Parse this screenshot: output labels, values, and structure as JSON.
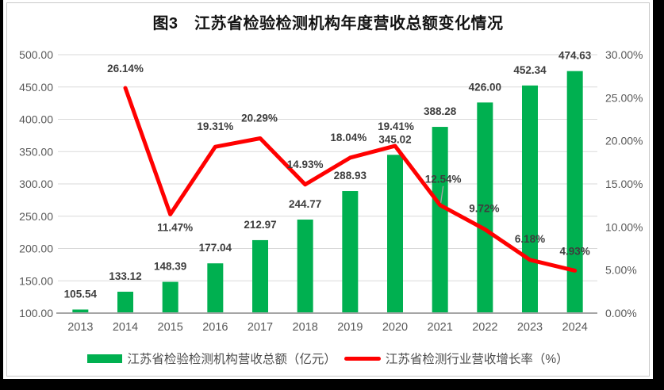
{
  "title": "图3　江苏省检验检测机构年度营收总额变化情况",
  "chart_data": {
    "type": "bar+line combo",
    "categories": [
      "2013",
      "2014",
      "2015",
      "2016",
      "2017",
      "2018",
      "2019",
      "2020",
      "2021",
      "2022",
      "2023",
      "2024"
    ],
    "series": [
      {
        "name": "江苏省检验检测机构营收总额（亿元）",
        "type": "bar",
        "axis": "left",
        "color": "#00B050",
        "values": [
          105.54,
          133.12,
          148.39,
          177.04,
          212.97,
          244.77,
          288.93,
          345.02,
          388.28,
          426.0,
          452.34,
          474.63
        ],
        "labels": [
          "105.54",
          "133.12",
          "148.39",
          "177.04",
          "212.97",
          "244.77",
          "288.93",
          "345.02",
          "388.28",
          "426.00",
          "452.34",
          "474.63"
        ]
      },
      {
        "name": "江苏省检测行业营收增长率（%）",
        "type": "line",
        "axis": "right",
        "color": "#FF0000",
        "values": [
          null,
          26.14,
          11.47,
          19.31,
          20.29,
          14.93,
          18.04,
          19.41,
          12.54,
          9.72,
          6.18,
          4.93
        ],
        "labels": [
          null,
          "26.14%",
          "11.47%",
          "19.31%",
          "20.29%",
          "14.93%",
          "18.04%",
          "19.41%",
          "12.54%",
          "9.72%",
          "6.18%",
          "4.93%"
        ],
        "label_offsets": [
          null,
          [
            0,
            -25
          ],
          [
            6,
            16
          ],
          [
            0,
            -26
          ],
          [
            -1,
            -26
          ],
          [
            0,
            -26
          ],
          [
            -2,
            -26
          ],
          [
            1,
            -25
          ],
          [
            4,
            -33
          ],
          [
            -1,
            -27
          ],
          [
            0,
            -27
          ],
          [
            0,
            -25
          ]
        ],
        "leader_index": 8
      }
    ],
    "left_axis": {
      "min": 100,
      "max": 500,
      "step": 50,
      "ticks": [
        "100.00",
        "150.00",
        "200.00",
        "250.00",
        "300.00",
        "350.00",
        "400.00",
        "450.00",
        "500.00"
      ]
    },
    "right_axis": {
      "min": 0,
      "max": 30,
      "step": 5,
      "ticks": [
        "0.00%",
        "5.00%",
        "10.00%",
        "15.00%",
        "20.00%",
        "25.00%",
        "30.00%"
      ]
    },
    "grid": true,
    "legend_position": "bottom"
  },
  "legend": {
    "items": [
      {
        "label": "江苏省检验检测机构营收总额（亿元）",
        "marker": "rect",
        "color": "#00B050"
      },
      {
        "label": "江苏省检测行业营收增长率（%）",
        "marker": "line",
        "color": "#FF0000"
      }
    ]
  },
  "colors": {
    "bar": "#00B050",
    "line": "#FF0000",
    "grid": "#D9D9D9",
    "axis_line": "#A6A6A6",
    "tick_text": "#595959",
    "label_text": "#3D3D3D",
    "leader": "#A6A6A6",
    "title_text": "#141414",
    "canvas_bg": "#FFFFFF",
    "page_bg": "#000000"
  }
}
